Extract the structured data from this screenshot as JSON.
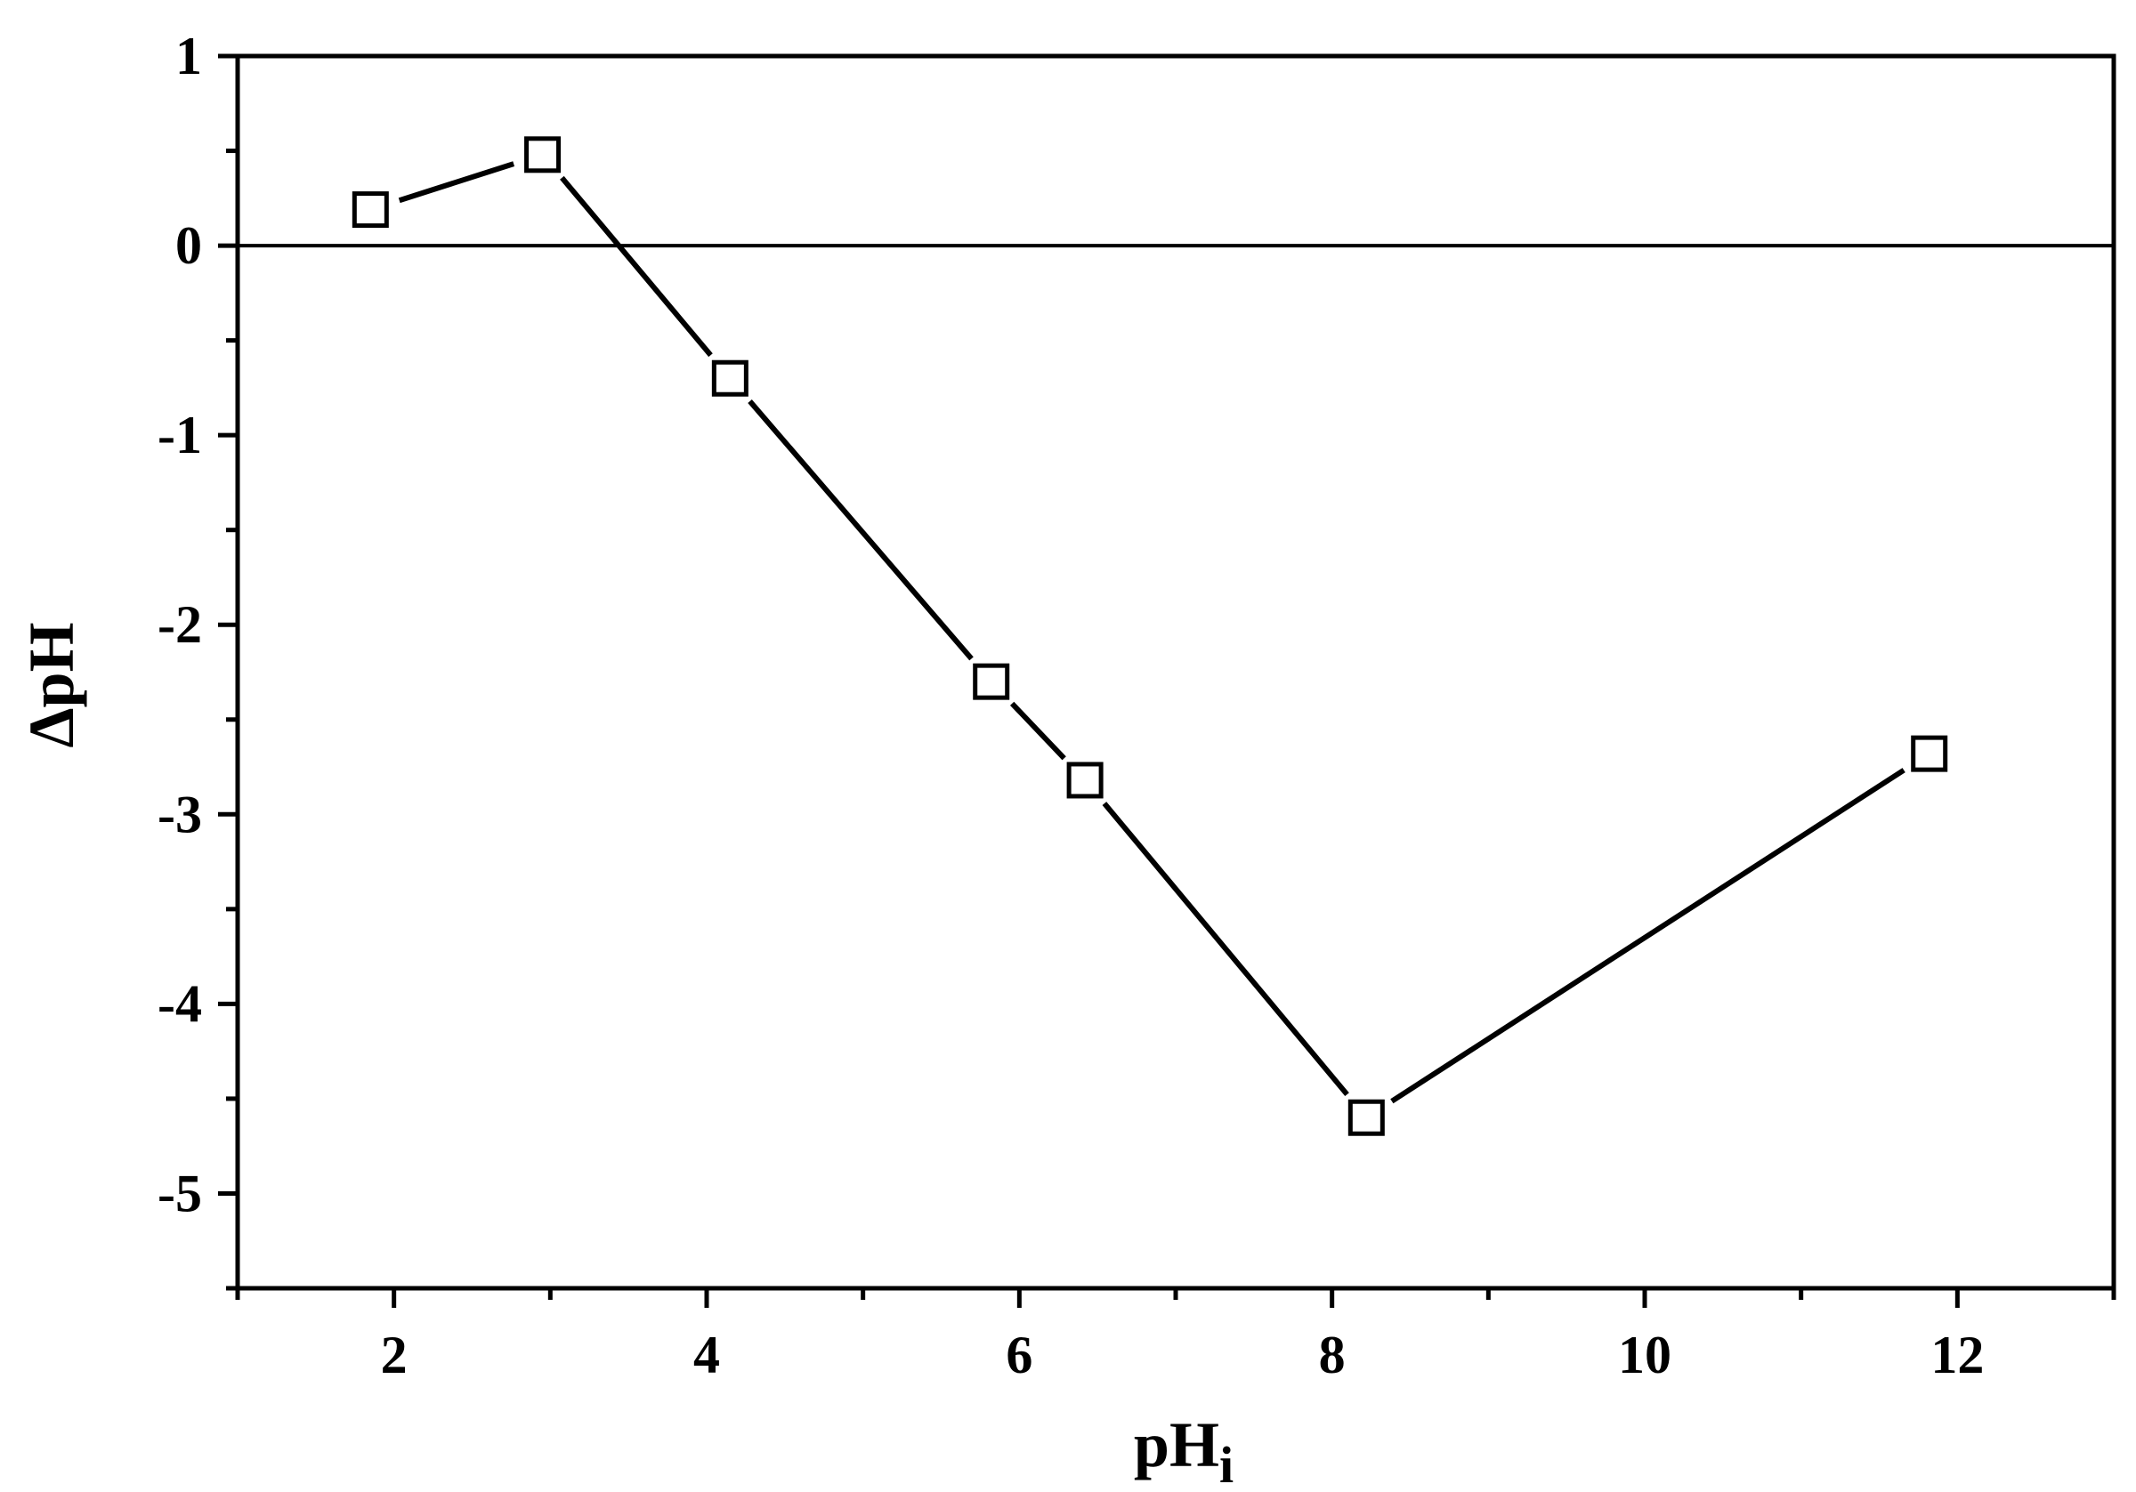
{
  "chart_data": {
    "type": "line",
    "xlabel": "pH",
    "xlabel_subscript": "i",
    "ylabel": "ΔpH",
    "xlim": [
      1,
      13
    ],
    "ylim": [
      -5.5,
      1
    ],
    "x_ticks_major": [
      2,
      4,
      6,
      8,
      10,
      12
    ],
    "x_ticks_minor": [
      1,
      3,
      5,
      7,
      9,
      11,
      13
    ],
    "y_ticks_major": [
      1,
      0,
      -1,
      -2,
      -3,
      -4,
      -5
    ],
    "y_ticks_minor": [
      0.5,
      -0.5,
      -1.5,
      -2.5,
      -3.5,
      -4.5,
      -5.5
    ],
    "reference_line_y": 0,
    "marker": "open-square",
    "color": "#000000",
    "series": [
      {
        "x": [
          1.85,
          2.95,
          4.15,
          5.82,
          6.42,
          8.22,
          11.82
        ],
        "y": [
          0.19,
          0.48,
          -0.7,
          -2.3,
          -2.82,
          -4.6,
          -2.68
        ]
      }
    ]
  }
}
